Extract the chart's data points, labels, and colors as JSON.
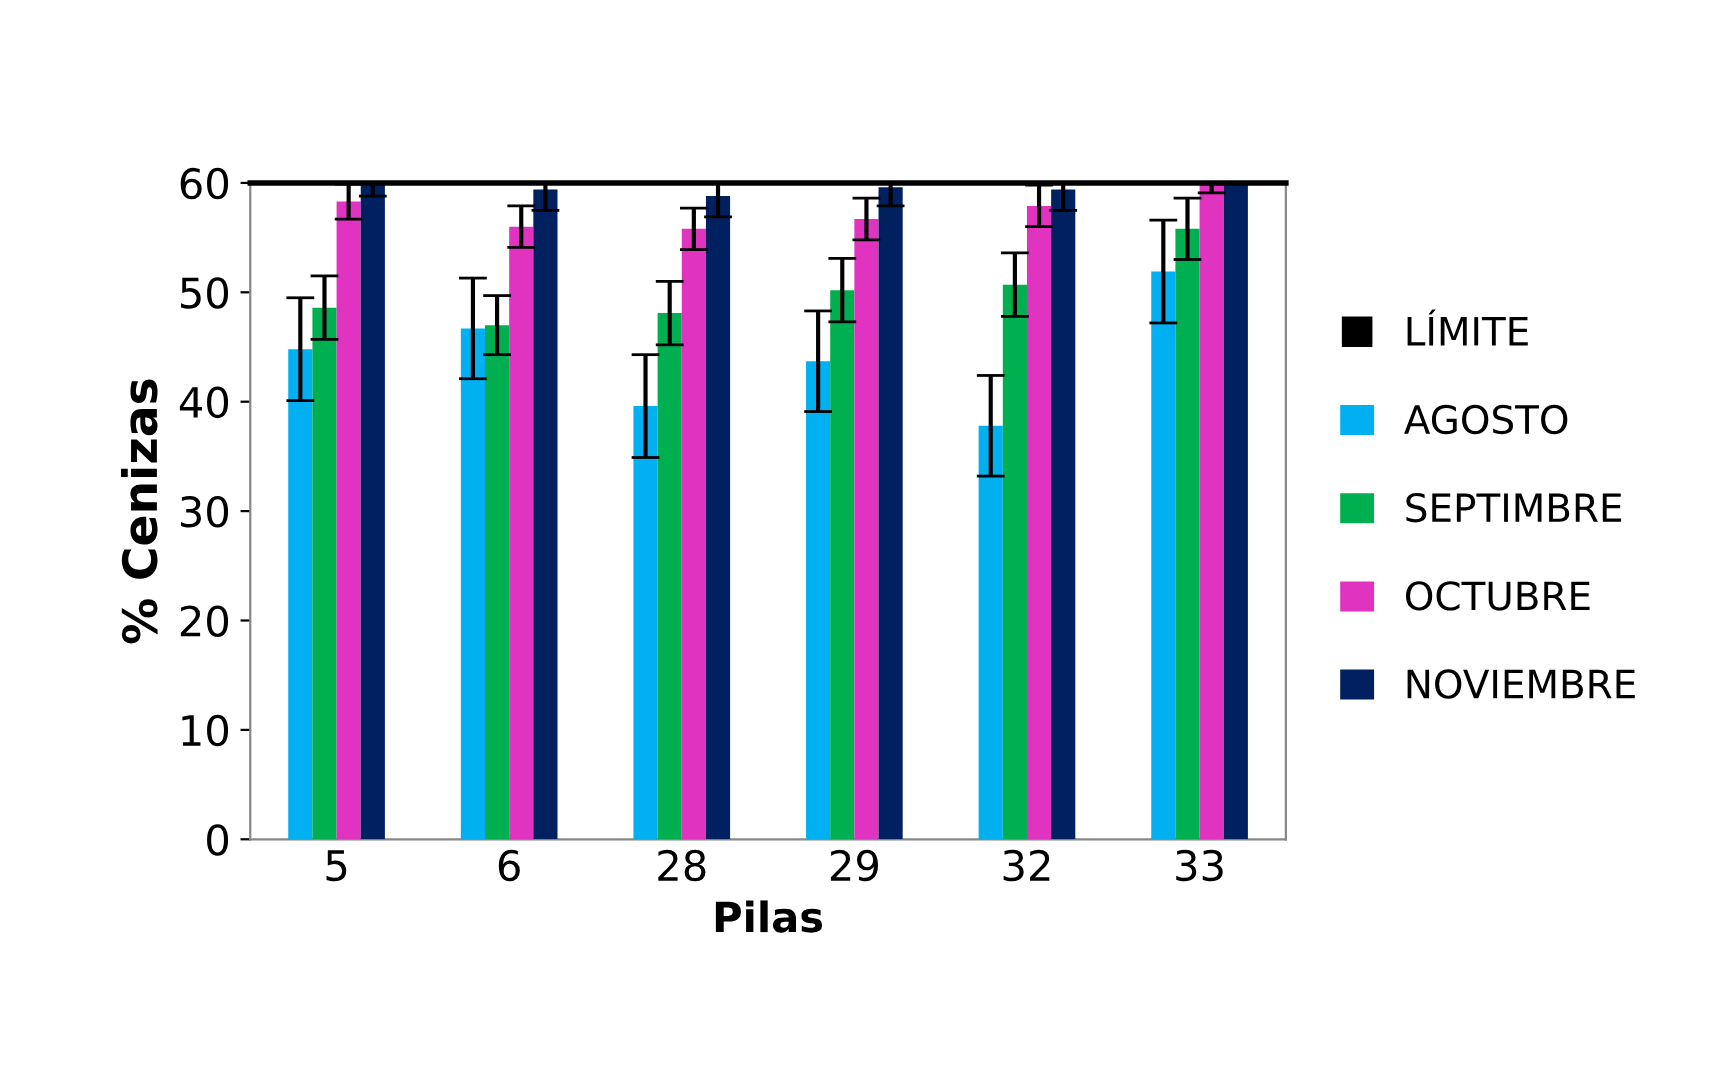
{
  "chart_data": {
    "type": "bar",
    "xlabel": "Pilas",
    "ylabel": "% Cenizas",
    "categories": [
      "5",
      "6",
      "28",
      "29",
      "32",
      "33"
    ],
    "series": [
      {
        "name": "AGOSTO",
        "color": "#00b0f0",
        "values": [
          44.8,
          46.7,
          39.6,
          43.7,
          37.8,
          51.9
        ],
        "errors": [
          4.7,
          4.6,
          4.7,
          4.6,
          4.6,
          4.7
        ]
      },
      {
        "name": "SEPTIMBRE",
        "color": "#00b050",
        "values": [
          48.6,
          47.0,
          48.1,
          50.2,
          50.7,
          55.8
        ],
        "errors": [
          2.9,
          2.7,
          2.9,
          2.9,
          2.9,
          2.8
        ]
      },
      {
        "name": "OCTUBRE",
        "color": "#e033c0",
        "values": [
          58.3,
          56.0,
          55.8,
          56.7,
          57.9,
          60
        ],
        "errors": [
          1.6,
          1.9,
          1.9,
          1.9,
          1.9,
          [
            59.1,
            60
          ]
        ]
      },
      {
        "name": "NOVIEMBRE",
        "color": "#002060",
        "values": [
          59.9,
          59.4,
          58.8,
          59.6,
          59.4,
          60
        ],
        "errors": [
          [
            58.8,
            60
          ],
          [
            57.5,
            60
          ],
          [
            56.9,
            60
          ],
          [
            57.9,
            60
          ],
          [
            57.5,
            60
          ],
          null
        ]
      }
    ],
    "ref_lines": [
      {
        "axis": "y",
        "value": 60,
        "label": "LÍMITE",
        "color": "#000000"
      }
    ],
    "ylim": [
      0,
      60
    ],
    "yticks": [
      0,
      10,
      20,
      30,
      40,
      50,
      60
    ],
    "grid": false,
    "legend": "right"
  }
}
